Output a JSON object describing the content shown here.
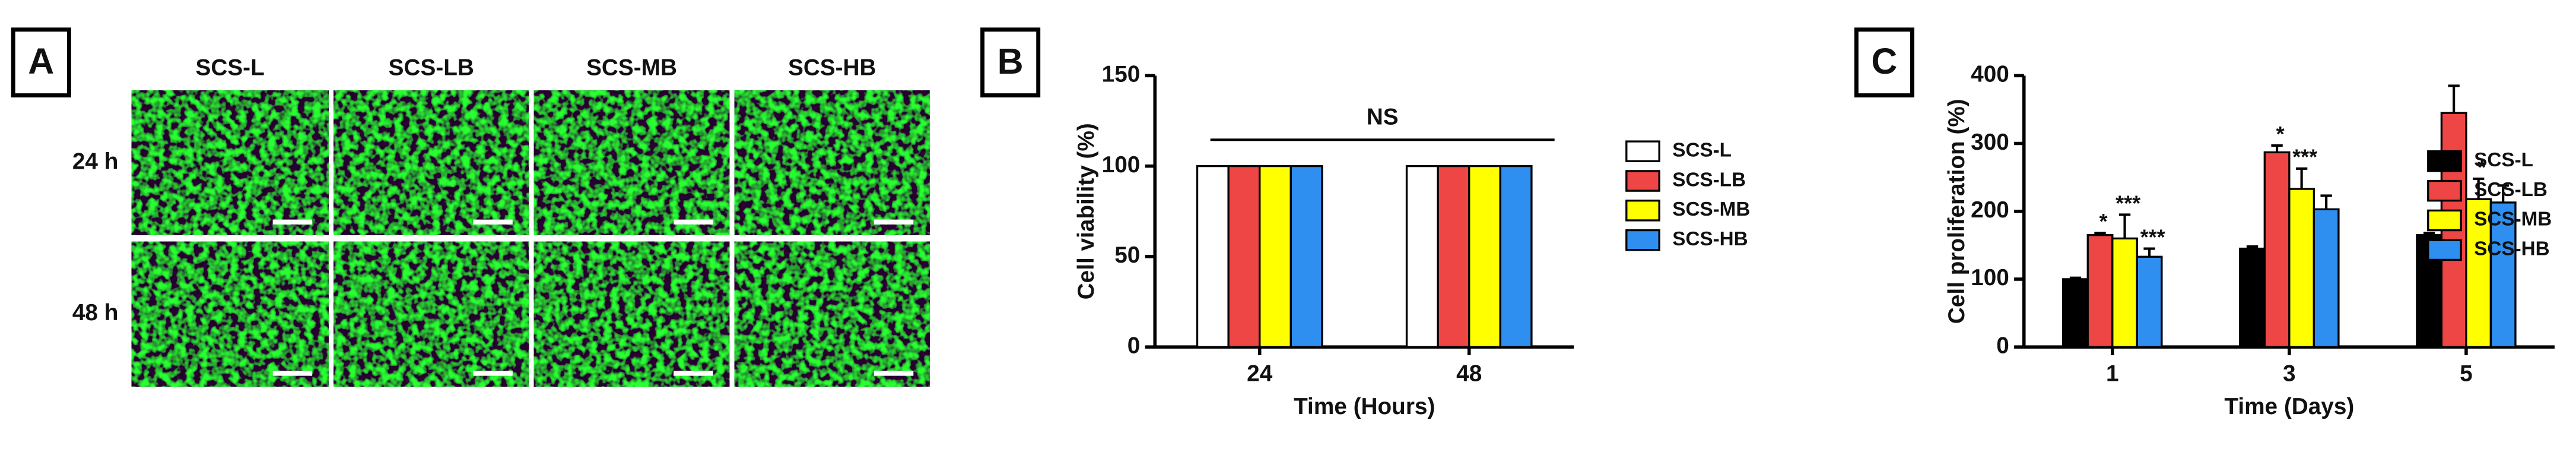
{
  "chart_data": [
    {
      "type": "image-grid",
      "panel": "A",
      "columns": [
        "SCS-L",
        "SCS-LB",
        "SCS-MB",
        "SCS-HB"
      ],
      "rows": [
        "24 h",
        "48 h"
      ]
    },
    {
      "type": "bar",
      "panel": "B",
      "categories": [
        "24",
        "48"
      ],
      "xlabel": "Time (Hours)",
      "ylabel": "Cell viability (%)",
      "ylim": [
        0,
        150
      ],
      "yticks": [
        0,
        50,
        100,
        150
      ],
      "annotation": "NS",
      "series": [
        {
          "name": "SCS-L",
          "color": "#ffffff",
          "values": [
            100,
            100
          ]
        },
        {
          "name": "SCS-LB",
          "color": "#ee4545",
          "values": [
            100,
            100
          ]
        },
        {
          "name": "SCS-MB",
          "color": "#ffff00",
          "values": [
            100,
            100
          ]
        },
        {
          "name": "SCS-HB",
          "color": "#2e8ff0",
          "values": [
            100,
            100
          ]
        }
      ]
    },
    {
      "type": "bar",
      "panel": "C",
      "categories": [
        "1",
        "3",
        "5"
      ],
      "xlabel": "Time (Days)",
      "ylabel": "Cell proliferation (%)",
      "ylim": [
        0,
        400
      ],
      "yticks": [
        0,
        100,
        200,
        300,
        400
      ],
      "series": [
        {
          "name": "SCS-L",
          "color": "#000000",
          "values": [
            100,
            145,
            165
          ],
          "errors": [
            2,
            3,
            3
          ],
          "significance": [
            null,
            null,
            null
          ]
        },
        {
          "name": "SCS-LB",
          "color": "#ee4545",
          "values": [
            165,
            287,
            345
          ],
          "errors": [
            3,
            10,
            40
          ],
          "significance": [
            "*",
            "*",
            null
          ]
        },
        {
          "name": "SCS-MB",
          "color": "#ffff00",
          "values": [
            160,
            233,
            218
          ],
          "errors": [
            35,
            30,
            30
          ],
          "significance": [
            "***",
            "***",
            "*"
          ]
        },
        {
          "name": "SCS-HB",
          "color": "#2e8ff0",
          "values": [
            133,
            203,
            213
          ],
          "errors": [
            12,
            20,
            25
          ],
          "significance": [
            "***",
            null,
            null
          ]
        }
      ]
    }
  ]
}
